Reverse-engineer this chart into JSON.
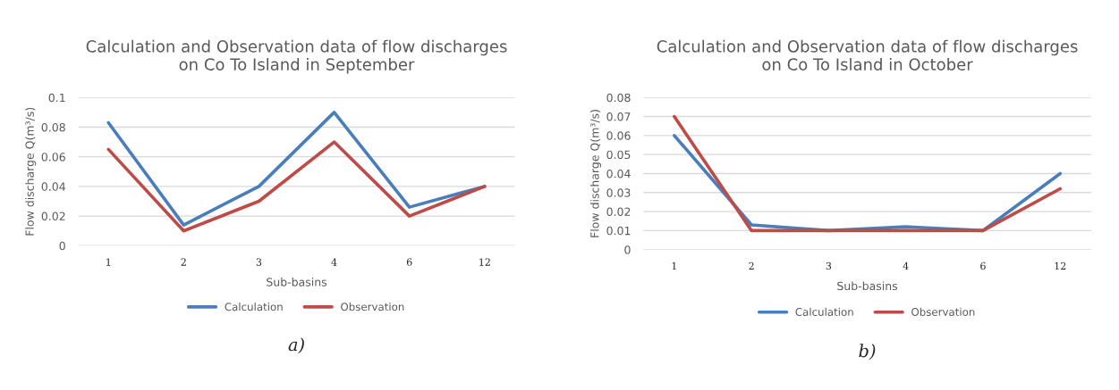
{
  "chart_data": [
    {
      "type": "line",
      "title": "Calculation and Observation data of flow discharges on Co To Island in September",
      "xlabel": "Sub-basins",
      "ylabel": "Flow discharge Q(m³/s)",
      "categories": [
        "1",
        "2",
        "3",
        "4",
        "6",
        "12"
      ],
      "series": [
        {
          "name": "Calculation",
          "color": "#4a7ebb",
          "values": [
            0.083,
            0.014,
            0.04,
            0.09,
            0.026,
            0.04
          ]
        },
        {
          "name": "Observation",
          "color": "#be4b48",
          "values": [
            0.065,
            0.01,
            0.03,
            0.07,
            0.02,
            0.04
          ]
        }
      ],
      "ylim": [
        0,
        0.1
      ],
      "yticks": [
        0,
        0.02,
        0.04,
        0.06,
        0.08,
        0.1
      ],
      "grid": "y",
      "legend": "bottom",
      "marker": "none",
      "line_style": "solid",
      "annotations": [
        "a)"
      ]
    },
    {
      "type": "line",
      "title": "Calculation and Observation data of flow discharges on Co To Island in October",
      "xlabel": "Sub-basins",
      "ylabel": "Flow discharge Q(m³/s)",
      "categories": [
        "1",
        "2",
        "3",
        "4",
        "6",
        "12"
      ],
      "series": [
        {
          "name": "Calculation",
          "color": "#4a7ebb",
          "values": [
            0.06,
            0.013,
            0.01,
            0.012,
            0.01,
            0.04
          ]
        },
        {
          "name": "Observation",
          "color": "#be4b48",
          "values": [
            0.07,
            0.01,
            0.01,
            0.01,
            0.01,
            0.032
          ]
        }
      ],
      "ylim": [
        0,
        0.08
      ],
      "yticks": [
        0,
        0.01,
        0.02,
        0.03,
        0.04,
        0.05,
        0.06,
        0.07,
        0.08
      ],
      "grid": "y",
      "legend": "bottom",
      "marker": "none",
      "line_style": "solid",
      "annotations": [
        "b)"
      ]
    }
  ]
}
